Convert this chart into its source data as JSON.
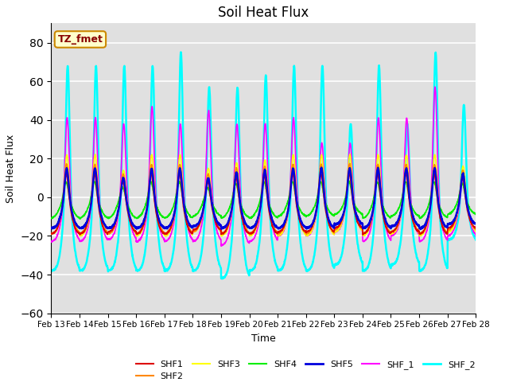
{
  "title": "Soil Heat Flux",
  "xlabel": "Time",
  "ylabel": "Soil Heat Flux",
  "ylim": [
    -60,
    90
  ],
  "yticks": [
    -60,
    -40,
    -20,
    0,
    20,
    40,
    60,
    80
  ],
  "x_tick_labels": [
    "Feb 13",
    "Feb 14",
    "Feb 15",
    "Feb 16",
    "Feb 17",
    "Feb 18",
    "Feb 19",
    "Feb 20",
    "Feb 21",
    "Feb 22",
    "Feb 23",
    "Feb 24",
    "Feb 25",
    "Feb 26",
    "Feb 27",
    "Feb 28"
  ],
  "annotation_text": "TZ_fmet",
  "annotation_bg": "#ffffcc",
  "annotation_border": "#cc8800",
  "background_color": "#e0e0e0",
  "grid_color": "#ffffff",
  "series_colors": {
    "SHF1": "#dd0000",
    "SHF2": "#ff8800",
    "SHF3": "#ffff00",
    "SHF4": "#00ee00",
    "SHF5": "#0000dd",
    "SHF_1": "#ff00ff",
    "SHF_2": "#00ffff"
  },
  "series_linewidths": {
    "SHF1": 1.2,
    "SHF2": 1.2,
    "SHF3": 1.2,
    "SHF4": 1.2,
    "SHF5": 1.8,
    "SHF_1": 1.2,
    "SHF_2": 1.8
  }
}
